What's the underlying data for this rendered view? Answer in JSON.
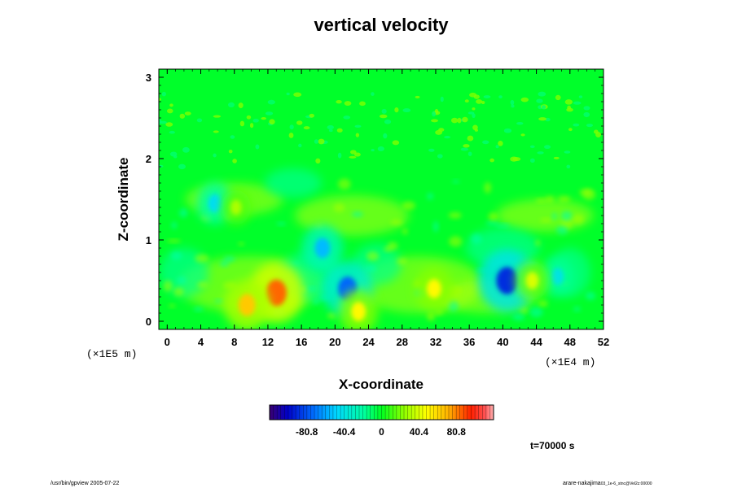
{
  "chart_data": {
    "type": "heatmap",
    "title": "vertical velocity",
    "xlabel": "X-coordinate",
    "ylabel": "Z-coordinate",
    "xlim": [
      -1,
      52
    ],
    "ylim": [
      -0.1,
      3.1
    ],
    "x_ticks": [
      0,
      4,
      8,
      12,
      16,
      20,
      24,
      28,
      32,
      36,
      40,
      44,
      48,
      52
    ],
    "x_tick_labels": [
      "0",
      "4",
      "8",
      "12",
      "16",
      "20",
      "24",
      "28",
      "32",
      "36",
      "40",
      "44",
      "48",
      "52"
    ],
    "y_ticks": [
      0,
      1,
      2,
      3
    ],
    "y_tick_labels": [
      "0",
      "1",
      "2",
      "3"
    ],
    "x_scale_text": "(×1E4 m)",
    "y_scale_text": "(×1E5 m)",
    "colorbar": {
      "range": [
        -121,
        121
      ],
      "ticks": [
        -80.8,
        -40.4,
        0,
        40.4,
        80.8
      ],
      "tick_labels": [
        "-80.8",
        "-40.4",
        "0",
        "40.4",
        "80.8"
      ],
      "colormap": "rainbow"
    },
    "features": [
      {
        "x": 40.5,
        "z": 0.5,
        "value": -90
      },
      {
        "x": 21.5,
        "z": 0.4,
        "value": -75
      },
      {
        "x": 18.5,
        "z": 0.9,
        "value": -55
      },
      {
        "x": 5.7,
        "z": 1.45,
        "value": -45
      },
      {
        "x": 46.5,
        "z": 0.55,
        "value": -40
      },
      {
        "x": 13,
        "z": 0.35,
        "value": 85
      },
      {
        "x": 9.5,
        "z": 0.2,
        "value": 65
      },
      {
        "x": 31.8,
        "z": 0.4,
        "value": 50
      },
      {
        "x": 22.8,
        "z": 0.12,
        "value": 50
      },
      {
        "x": 43.5,
        "z": 0.5,
        "value": 40
      },
      {
        "x": 8.2,
        "z": 1.4,
        "value": 30
      }
    ]
  },
  "annotations": {
    "time": "t=70000 s",
    "footer_left": "/usr/bin/gpview 2005-07-22",
    "footer_right": "arare-nakajima",
    "footer_right_sub": "03_1e-6_stnc@Vel2z:00000"
  },
  "colors": {
    "background": "#00ff2a",
    "frame": "#000000"
  }
}
